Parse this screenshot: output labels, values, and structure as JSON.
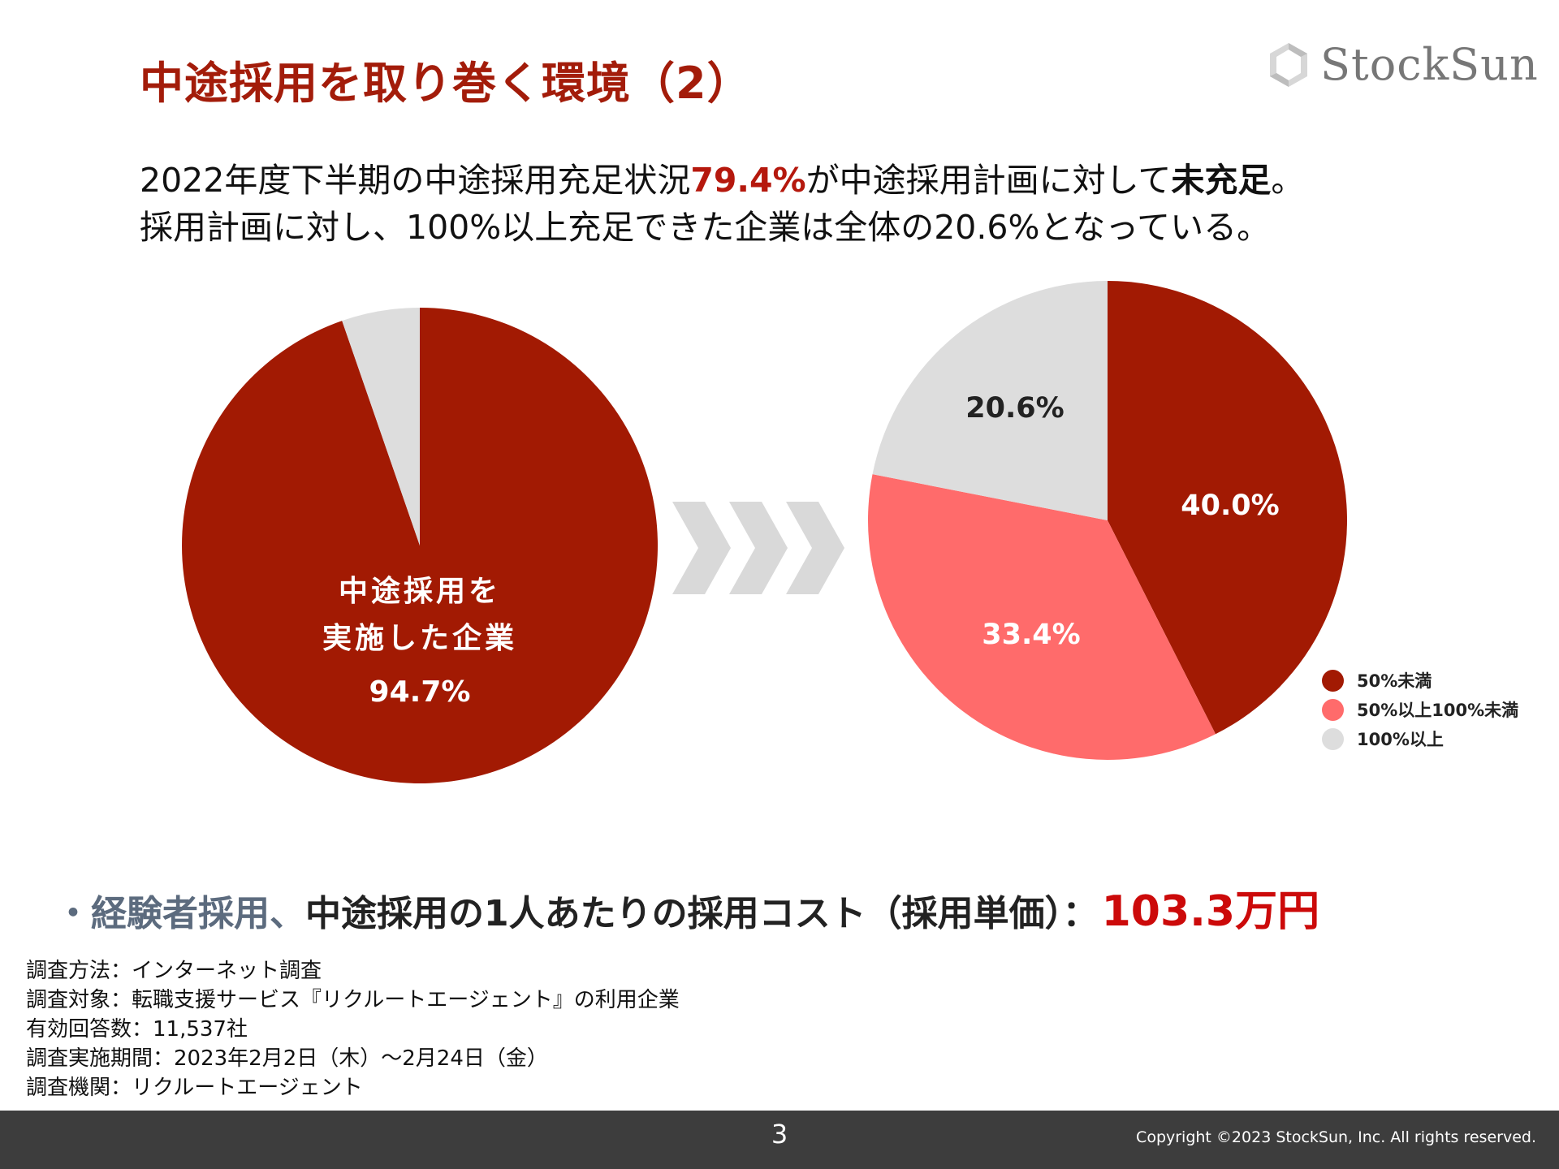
{
  "header": {
    "title": "中途採用を取り巻く環境（2）",
    "logo_text": "StockSun"
  },
  "lead": {
    "line1_a": "2022年度下半期の中途採用充足状況",
    "line1_highlight": "79.4%",
    "line1_b": "が中途採用計画に対して",
    "line1_bold": "未充足",
    "line1_c": "。",
    "line2": "採用計画に対し、100%以上充足できた企業は全体の20.6%となっている。"
  },
  "chart_data": [
    {
      "type": "pie",
      "slices": [
        {
          "label": "中途採用を実施した企業",
          "value": 94.7,
          "display": "94.7%",
          "color": "#a21a03"
        },
        {
          "label": "",
          "value": 5.3,
          "display": "",
          "color": "#dddddd"
        }
      ],
      "center_text": [
        "中途採用を",
        "実施した企業",
        "94.7%"
      ]
    },
    {
      "type": "pie",
      "slices": [
        {
          "label": "50%未満",
          "value": 40.0,
          "display": "40.0%",
          "color": "#a21a03"
        },
        {
          "label": "50%以上100%未満",
          "value": 33.4,
          "display": "33.4%",
          "color": "#ff6b6b"
        },
        {
          "label": "100%以上",
          "value": 20.6,
          "display": "20.6%",
          "color": "#dddddd"
        }
      ],
      "legend_placement": "bottom-right"
    }
  ],
  "cost": {
    "bullet": "・",
    "lead": "経験者採用、",
    "text": "中途採用の1人あたりの採用コスト（採用単価）：",
    "value": "103.3万円"
  },
  "notes": [
    "調査方法：インターネット調査",
    "調査対象：転職支援サービス『リクルートエージェント』の利用企業",
    "有効回答数：11,537社",
    "調査実施期間：2023年2月2日（木）〜2月24日（金）",
    "調査機関：リクルートエージェント"
  ],
  "footer": {
    "page_number": "3",
    "copyright": "Copyright ©2023 StockSun, Inc. All rights reserved."
  },
  "colors": {
    "title": "#a31c0a",
    "accent_red": "#cc0a0a",
    "footer_bg": "#3d3d3d",
    "chevron": "#d9d9d9"
  }
}
